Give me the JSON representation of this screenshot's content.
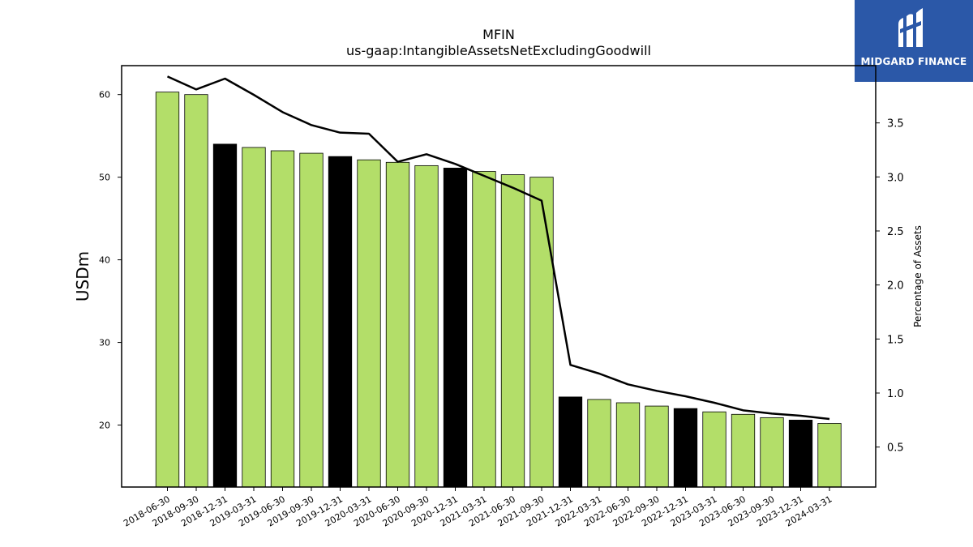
{
  "logo": {
    "text": "MIDGARD FINANCE"
  },
  "chart_data": {
    "type": "bar",
    "title": "MFIN",
    "subtitle": "us-gaap:IntangibleAssetsNetExcludingGoodwill",
    "ylabel": "USDm",
    "y2label": "Percentage of Assets",
    "ylim": [
      12.5,
      63.5
    ],
    "y2lim": [
      0.13,
      4.03
    ],
    "yticks": [
      20,
      30,
      40,
      50,
      60
    ],
    "y2ticks": [
      "0.5",
      "1.0",
      "1.5",
      "2.0",
      "2.5",
      "3.0",
      "3.5"
    ],
    "categories": [
      "2018-06-30",
      "2018-09-30",
      "2018-12-31",
      "2019-03-31",
      "2019-06-30",
      "2019-09-30",
      "2019-12-31",
      "2020-03-31",
      "2020-06-30",
      "2020-09-30",
      "2020-12-31",
      "2021-03-31",
      "2021-06-30",
      "2021-09-30",
      "2021-12-31",
      "2022-03-31",
      "2022-06-30",
      "2022-09-30",
      "2022-12-31",
      "2023-03-31",
      "2023-06-30",
      "2023-09-30",
      "2023-12-31",
      "2024-03-31"
    ],
    "series": [
      {
        "type": "bar",
        "axis": "left",
        "values": [
          60.3,
          60.0,
          54.0,
          53.6,
          53.2,
          52.9,
          52.5,
          52.1,
          51.8,
          51.4,
          51.1,
          50.7,
          50.3,
          50.0,
          23.4,
          23.1,
          22.7,
          22.3,
          22.0,
          21.6,
          21.3,
          20.9,
          20.6,
          20.2
        ],
        "colors": [
          "#b3de69",
          "#b3de69",
          "#000000",
          "#b3de69",
          "#b3de69",
          "#b3de69",
          "#000000",
          "#b3de69",
          "#b3de69",
          "#b3de69",
          "#000000",
          "#b3de69",
          "#b3de69",
          "#b3de69",
          "#000000",
          "#b3de69",
          "#b3de69",
          "#b3de69",
          "#000000",
          "#b3de69",
          "#b3de69",
          "#b3de69",
          "#000000",
          "#b3de69"
        ]
      },
      {
        "type": "line",
        "axis": "right",
        "color": "#000000",
        "values": [
          3.93,
          3.81,
          3.91,
          3.76,
          3.6,
          3.48,
          3.41,
          3.4,
          3.14,
          3.21,
          3.12,
          3.01,
          2.9,
          2.78,
          1.26,
          1.18,
          1.08,
          1.02,
          0.97,
          0.91,
          0.84,
          0.81,
          0.79,
          0.76
        ]
      }
    ],
    "grid": false
  }
}
